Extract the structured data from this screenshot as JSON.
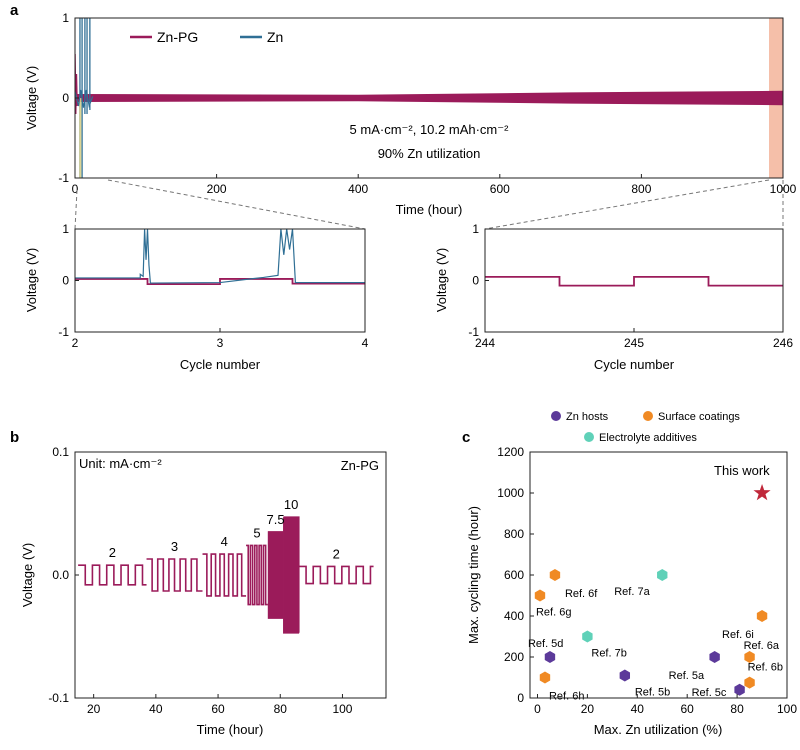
{
  "colors": {
    "zn_pg": "#9b1b5a",
    "zn": "#2f6f95",
    "zn_spike_yellow": "#f2e08a",
    "highlight": "#f3b49a",
    "zn_hosts": "#5c3a9a",
    "surface": "#f08a24",
    "electrolyte": "#5fd1b8",
    "star": "#c0283a"
  },
  "chart_data": [
    {
      "id": "a-main",
      "type": "line",
      "panel_label": "a",
      "legend": [
        "Zn-PG",
        "Zn"
      ],
      "annotation_lines": [
        "5 mA·cm⁻², 10.2 mAh·cm⁻²",
        "90% Zn utilization"
      ],
      "xlabel": "Time (hour)",
      "ylabel": "Voltage (V)",
      "xlim": [
        0,
        1000
      ],
      "ylim": [
        -1,
        1
      ],
      "xticks": [
        0,
        200,
        400,
        600,
        800,
        1000
      ],
      "yticks": [
        -1,
        0,
        1
      ],
      "series": [
        {
          "name": "Zn-PG",
          "band": [
            [
              0,
              -0.05,
              0.05
            ],
            [
              400,
              -0.04,
              0.04
            ],
            [
              700,
              -0.07,
              0.07
            ],
            [
              1000,
              -0.09,
              0.09
            ]
          ]
        },
        {
          "name": "Zn",
          "short_circuit_hours": [
            0,
            25
          ]
        }
      ]
    },
    {
      "id": "a-inset-left",
      "type": "line",
      "xlabel": "Cycle number",
      "ylabel": "Voltage (V)",
      "xlim": [
        2,
        4
      ],
      "ylim": [
        -1,
        1
      ],
      "xticks": [
        2,
        3,
        4
      ],
      "yticks": [
        -1,
        0,
        1
      ]
    },
    {
      "id": "a-inset-right",
      "type": "line",
      "xlabel": "Cycle number",
      "ylabel": "Voltage (V)",
      "xlim": [
        244,
        246
      ],
      "ylim": [
        -1,
        1
      ],
      "xticks": [
        244,
        245,
        246
      ],
      "yticks": [
        -1,
        0,
        1
      ]
    },
    {
      "id": "b",
      "type": "line",
      "panel_label": "b",
      "unit_note": "Unit: mA·cm⁻²",
      "series_label": "Zn-PG",
      "xlabel": "Time (hour)",
      "ylabel": "Voltage (V)",
      "xlim": [
        14,
        114
      ],
      "ylim": [
        -0.1,
        0.1
      ],
      "xticks": [
        20,
        40,
        60,
        80,
        100
      ],
      "ytick_labels": [
        "0.1",
        "0.0",
        "-0.1"
      ],
      "segments": [
        {
          "label": "2",
          "t_start": 15,
          "t_end": 37,
          "v": 0.008,
          "period": 4.6
        },
        {
          "label": "3",
          "t_start": 37,
          "t_end": 55,
          "v": 0.013,
          "period": 3.6
        },
        {
          "label": "4",
          "t_start": 55,
          "t_end": 69,
          "v": 0.017,
          "period": 2.8
        },
        {
          "label": "5",
          "t_start": 69,
          "t_end": 76,
          "v": 0.024,
          "period": 1.4
        },
        {
          "label": "7.5",
          "t_start": 76,
          "t_end": 81,
          "v": 0.035,
          "period": 0.5
        },
        {
          "label": "10",
          "t_start": 81,
          "t_end": 86,
          "v": 0.047,
          "period": 0.3
        },
        {
          "label": "2",
          "t_start": 86,
          "t_end": 110,
          "v": 0.007,
          "period": 4.6
        }
      ]
    },
    {
      "id": "c",
      "type": "scatter",
      "panel_label": "c",
      "xlabel": "Max. Zn utilization (%)",
      "ylabel": "Max. cycling time (hour)",
      "xlim": [
        -3,
        100
      ],
      "ylim": [
        0,
        1200
      ],
      "xticks": [
        0,
        20,
        40,
        60,
        80,
        100
      ],
      "yticks": [
        0,
        200,
        400,
        600,
        800,
        1000,
        1200
      ],
      "legend": [
        "Zn hosts",
        "Surface coatings",
        "Electrolyte additives"
      ],
      "points": [
        {
          "label": "Ref. 5d",
          "x": 5,
          "y": 200,
          "group": "Zn hosts"
        },
        {
          "label": "Ref. 5b",
          "x": 35,
          "y": 110,
          "group": "Zn hosts"
        },
        {
          "label": "Ref. 5a",
          "x": 71,
          "y": 200,
          "group": "Zn hosts"
        },
        {
          "label": "Ref. 5c",
          "x": 81,
          "y": 40,
          "group": "Zn hosts"
        },
        {
          "label": "Ref. 6f",
          "x": 7,
          "y": 600,
          "group": "Surface coatings"
        },
        {
          "label": "Ref. 6g",
          "x": 1,
          "y": 500,
          "group": "Surface coatings"
        },
        {
          "label": "Ref. 6h",
          "x": 3,
          "y": 100,
          "group": "Surface coatings"
        },
        {
          "label": "Ref. 6i",
          "x": 90,
          "y": 400,
          "group": "Surface coatings"
        },
        {
          "label": "Ref. 6a",
          "x": 85,
          "y": 200,
          "group": "Surface coatings"
        },
        {
          "label": "Ref. 6b",
          "x": 85,
          "y": 75,
          "group": "Surface coatings"
        },
        {
          "label": "Ref. 7a",
          "x": 50,
          "y": 600,
          "group": "Electrolyte additives"
        },
        {
          "label": "Ref. 7b",
          "x": 20,
          "y": 300,
          "group": "Electrolyte additives"
        },
        {
          "label": "This work",
          "x": 90,
          "y": 1000,
          "group": "star"
        }
      ]
    }
  ]
}
